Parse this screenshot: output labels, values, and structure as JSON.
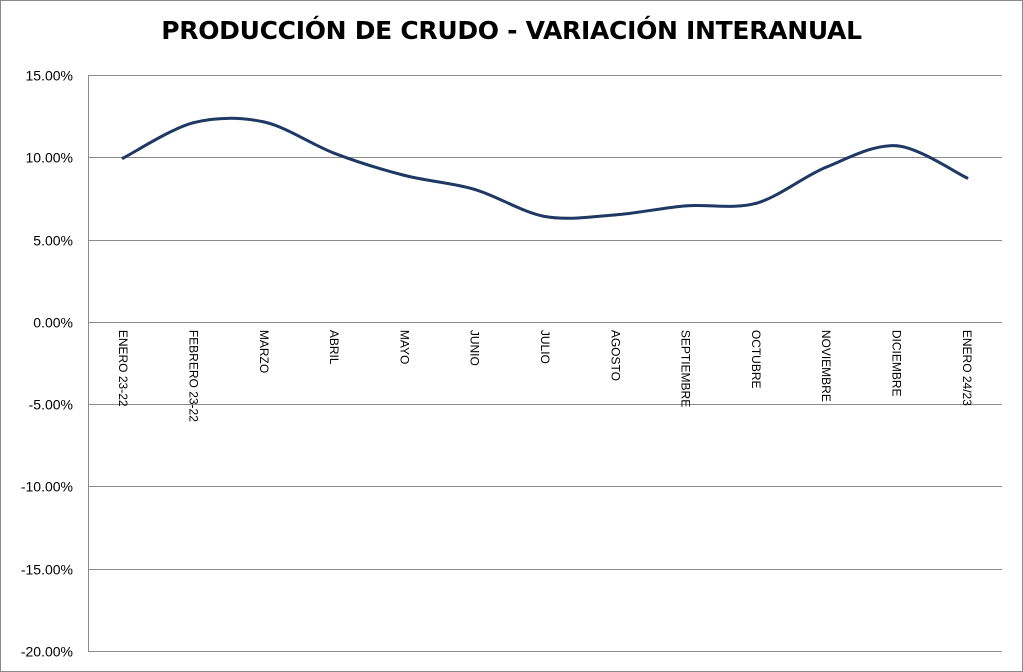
{
  "chart_data": {
    "type": "line",
    "title": "PRODUCCIÓN DE CRUDO - VARIACIÓN INTERANUAL",
    "xlabel": "",
    "ylabel": "",
    "categories": [
      "ENERO 23-22",
      "FEBRERO 23-22",
      "MARZO",
      "ABRIL",
      "MAYO",
      "JUNIO",
      "JULIO",
      "AGOSTO",
      "SEPTIEMBRE",
      "OCTUBRE",
      "NOVIEMBRE",
      "DICIEMBRE",
      "ENERO 24/23"
    ],
    "series": [
      {
        "values": [
          9.95,
          12.1,
          12.15,
          10.25,
          8.9,
          8.05,
          6.4,
          6.5,
          7.05,
          7.2,
          9.4,
          10.7,
          8.75
        ]
      }
    ],
    "ylim": [
      -20,
      15
    ],
    "yticks": [
      "15.00%",
      "10.00%",
      "5.00%",
      "0.00%",
      "-5.00%",
      "-10.00%",
      "-15.00%",
      "-20.00%"
    ],
    "ytick_values": [
      15,
      10,
      5,
      0,
      -5,
      -10,
      -15,
      -20
    ],
    "grid": true,
    "legend": "none",
    "line_color": "#1f3864"
  }
}
